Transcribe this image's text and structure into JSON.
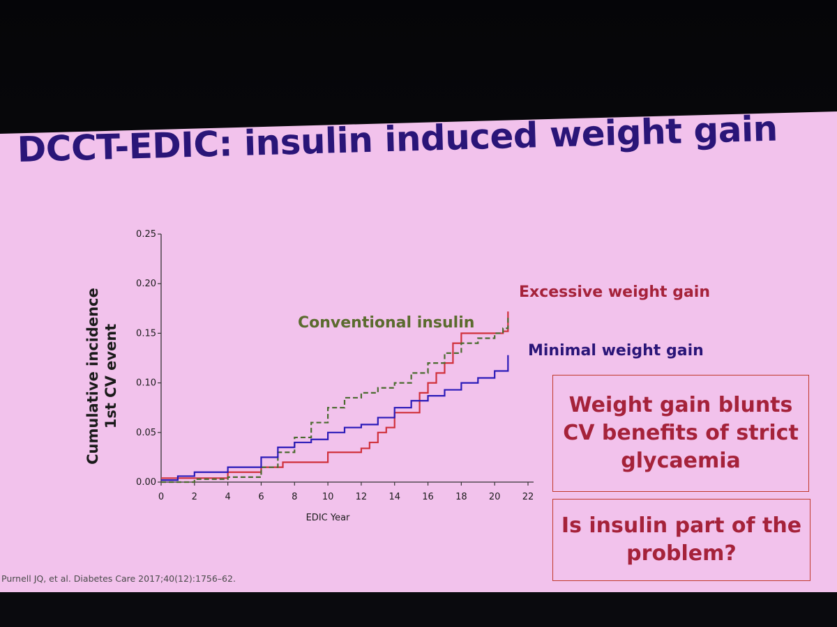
{
  "slide": {
    "title": "DCCT-EDIC: insulin induced weight gain",
    "citation": "Purnell JQ, et al. Diabetes Care 2017;40(12):1756–62.",
    "box_1": "Weight gain blunts CV benefits of strict glycaemia",
    "box_2": "Is insulin part of the problem?"
  },
  "chart_data": {
    "type": "line",
    "title": "",
    "xlabel": "EDIC Year",
    "ylabel": "Cumulative incidence 1st CV event",
    "xlim": [
      0,
      22
    ],
    "ylim": [
      0,
      0.25
    ],
    "x_ticks": [
      "0",
      "2",
      "4",
      "6",
      "8",
      "10",
      "12",
      "14",
      "16",
      "18",
      "20",
      "22"
    ],
    "y_ticks": [
      "0.00",
      "0.05",
      "0.10",
      "0.15",
      "0.20",
      "0.25"
    ],
    "grid": false,
    "series": [
      {
        "name": "Excessive weight gain",
        "color": "#d0303a",
        "dash": "solid",
        "points": [
          [
            0,
            0.004
          ],
          [
            4,
            0.004
          ],
          [
            4,
            0.01
          ],
          [
            6,
            0.015
          ],
          [
            7.3,
            0.02
          ],
          [
            7.5,
            0.02
          ],
          [
            9.6,
            0.02
          ],
          [
            10,
            0.03
          ],
          [
            12,
            0.034
          ],
          [
            12.5,
            0.04
          ],
          [
            13,
            0.05
          ],
          [
            13.5,
            0.055
          ],
          [
            14,
            0.07
          ],
          [
            15,
            0.07
          ],
          [
            15.5,
            0.09
          ],
          [
            16,
            0.1
          ],
          [
            16.5,
            0.11
          ],
          [
            17,
            0.12
          ],
          [
            17.5,
            0.14
          ],
          [
            18,
            0.15
          ],
          [
            20.5,
            0.152
          ],
          [
            20.8,
            0.172
          ]
        ]
      },
      {
        "name": "Conventional insulin",
        "color": "#4a6a2e",
        "dash": "dashed",
        "points": [
          [
            0,
            0.0
          ],
          [
            2,
            0.003
          ],
          [
            4,
            0.005
          ],
          [
            6,
            0.015
          ],
          [
            7,
            0.03
          ],
          [
            8,
            0.045
          ],
          [
            9,
            0.06
          ],
          [
            10,
            0.075
          ],
          [
            11,
            0.085
          ],
          [
            12,
            0.09
          ],
          [
            13,
            0.095
          ],
          [
            14,
            0.1
          ],
          [
            15,
            0.11
          ],
          [
            16,
            0.12
          ],
          [
            17,
            0.13
          ],
          [
            18,
            0.14
          ],
          [
            19,
            0.145
          ],
          [
            20,
            0.15
          ],
          [
            20.5,
            0.155
          ],
          [
            20.8,
            0.168
          ]
        ]
      },
      {
        "name": "Minimal weight gain",
        "color": "#2a1ab8",
        "dash": "solid",
        "points": [
          [
            0,
            0.002
          ],
          [
            1,
            0.006
          ],
          [
            2,
            0.01
          ],
          [
            4,
            0.015
          ],
          [
            6,
            0.025
          ],
          [
            7,
            0.035
          ],
          [
            8,
            0.04
          ],
          [
            9,
            0.043
          ],
          [
            10,
            0.05
          ],
          [
            11,
            0.055
          ],
          [
            12,
            0.058
          ],
          [
            13,
            0.065
          ],
          [
            14,
            0.075
          ],
          [
            15,
            0.082
          ],
          [
            16,
            0.087
          ],
          [
            17,
            0.093
          ],
          [
            18,
            0.1
          ],
          [
            19,
            0.105
          ],
          [
            20,
            0.112
          ],
          [
            20.8,
            0.128
          ]
        ]
      }
    ]
  }
}
